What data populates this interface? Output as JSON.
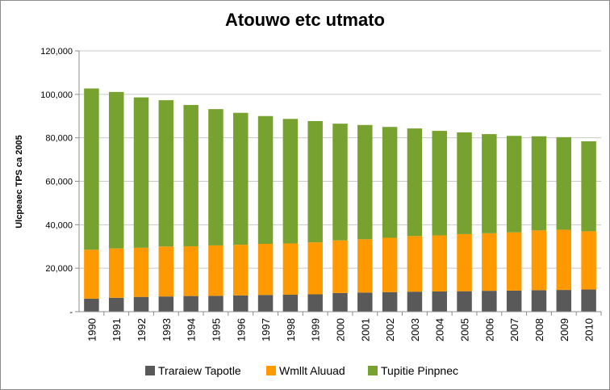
{
  "chart_data": {
    "type": "bar",
    "stacked": true,
    "title": "Atouwo etc utmato",
    "ylabel": "Ulcpeaec TPS ca 2005",
    "xlabel": "",
    "ylim": [
      0,
      120000
    ],
    "yticks": [
      "-",
      "20,000",
      "40,000",
      "60,000",
      "80,000",
      "100,000",
      "120,000"
    ],
    "grid": true,
    "legend_position": "bottom",
    "categories": [
      "1990",
      "1991",
      "1992",
      "1993",
      "1994",
      "1995",
      "1996",
      "1997",
      "1998",
      "1999",
      "2000",
      "2001",
      "2002",
      "2003",
      "2004",
      "2005",
      "2006",
      "2007",
      "2008",
      "2009",
      "2010"
    ],
    "series": [
      {
        "name": "Traraiew Tapotle",
        "color": "#595959",
        "values": [
          6000,
          6400,
          6800,
          7000,
          7200,
          7300,
          7500,
          7700,
          7800,
          8000,
          8600,
          8800,
          9000,
          9200,
          9300,
          9400,
          9600,
          9700,
          9900,
          10000,
          10200
        ]
      },
      {
        "name": "Wmllt Aluuad",
        "color": "#ff9900",
        "values": [
          22500,
          22700,
          22600,
          23000,
          22900,
          23200,
          23300,
          23500,
          23600,
          23900,
          24200,
          24500,
          25000,
          25600,
          25800,
          26300,
          26500,
          26800,
          27500,
          27700,
          26800
        ]
      },
      {
        "name": "Tupitie Pinpnec",
        "color": "#78a22f",
        "values": [
          74200,
          72000,
          69200,
          67300,
          65000,
          62700,
          60700,
          58800,
          57300,
          55800,
          53700,
          52600,
          51000,
          49500,
          48100,
          46800,
          45600,
          44400,
          43300,
          42600,
          41400
        ]
      }
    ]
  }
}
